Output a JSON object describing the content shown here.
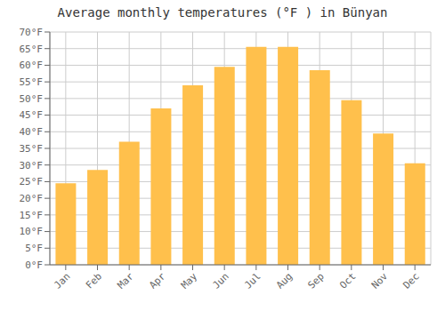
{
  "chart_data": {
    "type": "bar",
    "title": "Average monthly temperatures (°F ) in Bünyan",
    "categories": [
      "Jan",
      "Feb",
      "Mar",
      "Apr",
      "May",
      "Jun",
      "Jul",
      "Aug",
      "Sep",
      "Oct",
      "Nov",
      "Dec"
    ],
    "values": [
      24.5,
      28.5,
      37.0,
      47.0,
      54.0,
      59.5,
      65.5,
      65.5,
      58.5,
      49.5,
      39.5,
      30.5
    ],
    "color": "#FFC04C",
    "ylim": [
      0,
      70
    ],
    "yticks": [
      {
        "value": 0,
        "label": "0°F"
      },
      {
        "value": 5,
        "label": "5°F"
      },
      {
        "value": 10,
        "label": "10°F"
      },
      {
        "value": 15,
        "label": "15°F"
      },
      {
        "value": 20,
        "label": "20°F"
      },
      {
        "value": 25,
        "label": "25°F"
      },
      {
        "value": 30,
        "label": "30°F"
      },
      {
        "value": 35,
        "label": "35°F"
      },
      {
        "value": 40,
        "label": "40°F"
      },
      {
        "value": 45,
        "label": "45°F"
      },
      {
        "value": 50,
        "label": "50°F"
      },
      {
        "value": 55,
        "label": "55°F"
      },
      {
        "value": 60,
        "label": "60°F"
      },
      {
        "value": 65,
        "label": "65°F"
      },
      {
        "value": 70,
        "label": "70°F"
      }
    ],
    "grid": true
  }
}
